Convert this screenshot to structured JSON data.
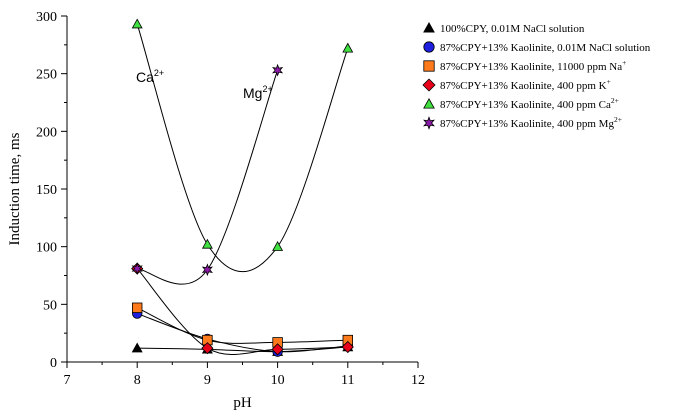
{
  "chart_data": {
    "type": "scatter",
    "xlabel": "pH",
    "ylabel": "Induction time, ms",
    "xlim": [
      7,
      12
    ],
    "ylim": [
      0,
      300
    ],
    "x_ticks": [
      "7",
      "8",
      "9",
      "10",
      "11",
      "12"
    ],
    "y_ticks": [
      "0",
      "50",
      "100",
      "150",
      "200",
      "250",
      "300"
    ],
    "grid": false,
    "legend_position": "right",
    "series": [
      {
        "name_parts": [
          "100%CPY, 0.01M NaCl solution"
        ],
        "marker": "triangle",
        "color": "#000000",
        "points": [
          [
            8,
            12
          ],
          [
            9,
            11
          ],
          [
            10,
            9
          ],
          [
            11,
            13
          ]
        ]
      },
      {
        "name_parts": [
          "87%CPY+13% Kaolinite, 0.01M NaCl solution"
        ],
        "marker": "circle",
        "color": "#1f1fe0",
        "points": [
          [
            8,
            42
          ],
          [
            9,
            20
          ],
          [
            10,
            9
          ],
          [
            11,
            14
          ]
        ]
      },
      {
        "name_parts": [
          "87%CPY+13% Kaolinite, 11000 ppm Na",
          "+"
        ],
        "marker": "square",
        "color": "#ff7a1a",
        "points": [
          [
            8,
            47
          ],
          [
            9,
            19
          ],
          [
            10,
            17
          ],
          [
            11,
            19
          ]
        ]
      },
      {
        "name_parts": [
          "87%CPY+13% Kaolinite, 400 ppm K",
          "+"
        ],
        "marker": "diamond",
        "color": "#e8001a",
        "points": [
          [
            8,
            81
          ],
          [
            9,
            12
          ],
          [
            10,
            11
          ],
          [
            11,
            13
          ]
        ]
      },
      {
        "name_parts": [
          "87%CPY+13% Kaolinite, 400 ppm Ca",
          "2+"
        ],
        "marker": "triangle",
        "color": "#40e040",
        "points": [
          [
            8,
            293
          ],
          [
            9,
            102
          ],
          [
            10,
            100
          ],
          [
            11,
            272
          ]
        ]
      },
      {
        "name_parts": [
          "87%CPY+13% Kaolinite, 400 ppm Mg",
          "2+"
        ],
        "marker": "star",
        "color": "#8c1aa8",
        "points": [
          [
            8,
            81
          ],
          [
            9,
            80
          ],
          [
            10,
            253
          ]
        ]
      }
    ],
    "annotations": [
      {
        "text": "Ca",
        "sup": "2+"
      },
      {
        "text": "Mg",
        "sup": "2+"
      }
    ]
  }
}
